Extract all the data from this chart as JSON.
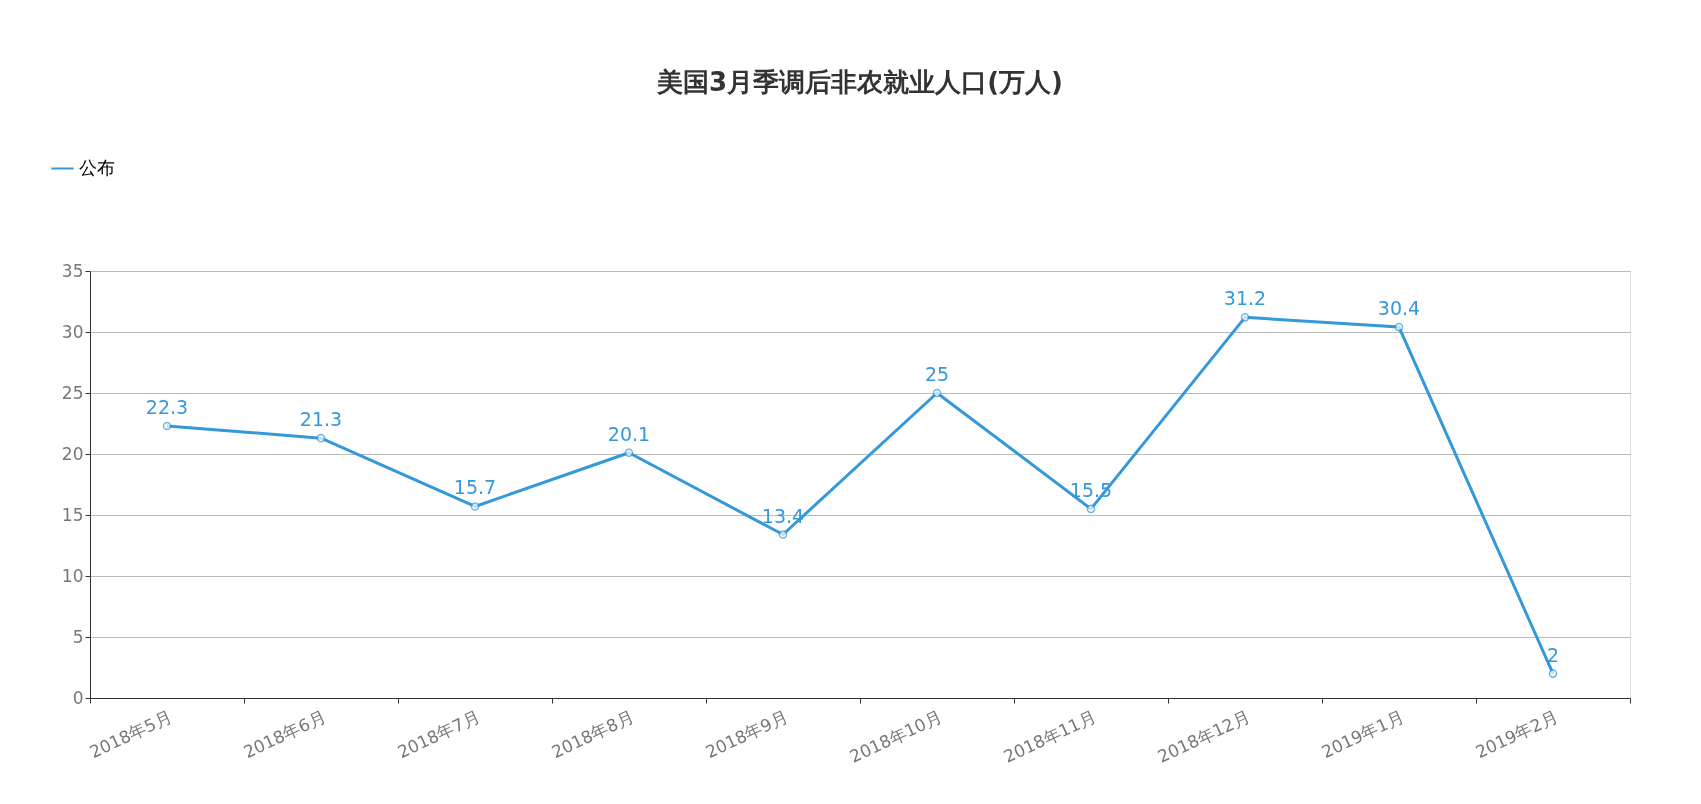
{
  "chart_data": {
    "type": "line",
    "title": "美国3月季调后非农就业人口(万人)",
    "categories": [
      "2018年5月",
      "2018年6月",
      "2018年7月",
      "2018年8月",
      "2018年9月",
      "2018年10月",
      "2018年11月",
      "2018年12月",
      "2019年1月",
      "2019年2月"
    ],
    "series": [
      {
        "name": "公布",
        "color": "#3498db",
        "values": [
          22.3,
          21.3,
          15.7,
          20.1,
          13.4,
          25,
          15.5,
          31.2,
          30.4,
          2
        ]
      }
    ],
    "ylim": [
      0,
      35
    ],
    "yticks": [
      0,
      5,
      10,
      15,
      20,
      25,
      30,
      35
    ],
    "grid": "y",
    "legend": "top left",
    "marker": "circle",
    "line_style": "solid",
    "data_labels": true
  }
}
